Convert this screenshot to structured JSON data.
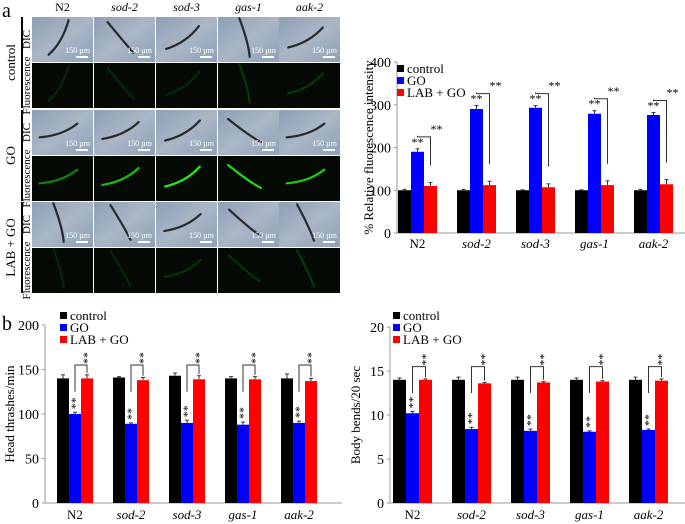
{
  "panel_labels": {
    "a": "a",
    "b": "b"
  },
  "micrographs": {
    "columns": [
      "N2",
      "sod-2",
      "sod-3",
      "gas-1",
      "aak-2"
    ],
    "groups": [
      "control",
      "GO",
      "LAB + GO"
    ],
    "row_types": [
      "DIC",
      "Fluorescence"
    ],
    "scale_bar_label": "150 µm",
    "fluorescence_intensity": {
      "control": [
        0.15,
        0.15,
        0.15,
        0.25,
        0.25
      ],
      "GO": [
        0.6,
        0.8,
        0.95,
        0.9,
        0.85
      ],
      "LAB + GO": [
        0.15,
        0.15,
        0.2,
        0.2,
        0.25
      ]
    }
  },
  "colors": {
    "control": "#000000",
    "GO": "#0000ff",
    "LAB + GO": "#ff0000"
  },
  "chart_data": [
    {
      "type": "bar",
      "panel": "a",
      "categories": [
        "N2",
        "sod-2",
        "sod-3",
        "gas-1",
        "aak-2"
      ],
      "ylabel": "% Relative fluorescence intensity",
      "xlabel": "",
      "ylim": [
        0,
        400
      ],
      "yticks": [
        0,
        100,
        200,
        300,
        400
      ],
      "legend": "top-left",
      "series": [
        {
          "name": "control",
          "values": [
            100,
            100,
            100,
            100,
            100
          ],
          "errors": [
            2,
            2,
            1,
            1,
            2
          ]
        },
        {
          "name": "GO",
          "values": [
            190,
            290,
            293,
            279,
            276
          ],
          "errors": [
            7,
            8,
            5,
            7,
            6
          ]
        },
        {
          "name": "LAB + GO",
          "values": [
            110,
            112,
            107,
            112,
            114
          ],
          "errors": [
            8,
            9,
            8,
            10,
            11
          ]
        }
      ],
      "annotations": {
        "go_vs_control": "**",
        "lab_vs_go": "**"
      }
    },
    {
      "type": "bar",
      "panel": "b",
      "categories": [
        "N2",
        "sod-2",
        "sod-3",
        "gas-1",
        "aak-2"
      ],
      "ylabel": "Head thrashes/min",
      "xlabel": "",
      "ylim": [
        0,
        200
      ],
      "yticks": [
        0,
        50,
        100,
        150,
        200
      ],
      "legend": "top-left",
      "series": [
        {
          "name": "control",
          "values": [
            140,
            141,
            143,
            140,
            140
          ],
          "errors": [
            4,
            1,
            3,
            2,
            5
          ]
        },
        {
          "name": "GO",
          "values": [
            100,
            89,
            90,
            88,
            90
          ],
          "errors": [
            2,
            1,
            3,
            3,
            2
          ]
        },
        {
          "name": "LAB + GO",
          "values": [
            140,
            138,
            139,
            139,
            137
          ],
          "errors": [
            4,
            3,
            4,
            3,
            3
          ]
        }
      ],
      "annotations": {
        "go_vs_control": "**",
        "lab_vs_go": "**"
      }
    },
    {
      "type": "bar",
      "panel": "b",
      "categories": [
        "N2",
        "sod-2",
        "sod-3",
        "gas-1",
        "aak-2"
      ],
      "ylabel": "Body bends/20 sec",
      "xlabel": "",
      "ylim": [
        0,
        20
      ],
      "yticks": [
        0,
        5,
        10,
        15,
        20
      ],
      "legend": "top-left",
      "series": [
        {
          "name": "control",
          "values": [
            14.0,
            14.0,
            14.0,
            14.0,
            14.0
          ],
          "errors": [
            0.2,
            0.3,
            0.3,
            0.2,
            0.3
          ]
        },
        {
          "name": "GO",
          "values": [
            10.2,
            8.4,
            8.2,
            8.1,
            8.3
          ],
          "errors": [
            0.2,
            0.2,
            0.2,
            0.1,
            0.1
          ]
        },
        {
          "name": "LAB + GO",
          "values": [
            14.0,
            13.6,
            13.7,
            13.8,
            13.9
          ],
          "errors": [
            0.1,
            0.1,
            0.1,
            0.1,
            0.2
          ]
        }
      ],
      "annotations": {
        "go_vs_control": "**",
        "lab_vs_go": "**"
      }
    }
  ]
}
